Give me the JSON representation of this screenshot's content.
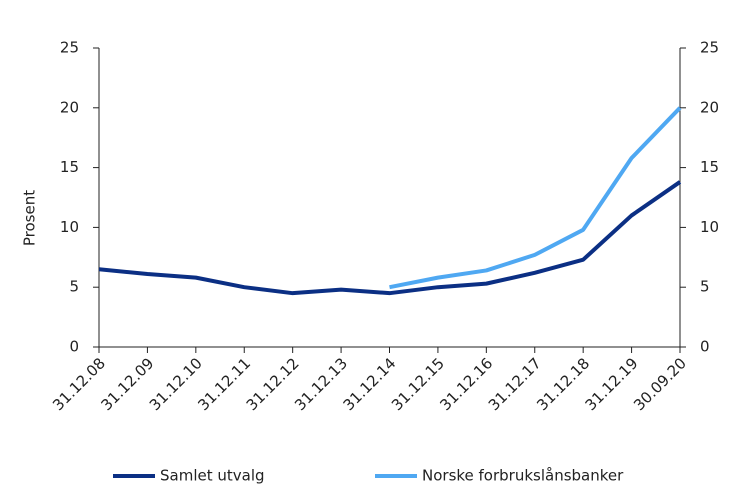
{
  "chart_data": {
    "type": "line",
    "y_label": "Prosent",
    "categories": [
      "31.12.08",
      "31.12.09",
      "31.12.10",
      "31.12.11",
      "31.12.12",
      "31.12.13",
      "31.12.14",
      "31.12.15",
      "31.12.16",
      "31.12.17",
      "31.12.18",
      "31.12.19",
      "30.09.20"
    ],
    "series": [
      {
        "name": "Samlet utvalg",
        "color": "#0b2f84",
        "values": [
          6.5,
          6.1,
          5.8,
          5.0,
          4.5,
          4.8,
          4.5,
          5.0,
          5.3,
          6.2,
          7.3,
          11.0,
          13.8
        ]
      },
      {
        "name": "Norske forbrukslånsbanker",
        "color": "#4fa8f2",
        "values": [
          null,
          null,
          null,
          null,
          null,
          null,
          5.0,
          5.8,
          6.4,
          7.7,
          9.8,
          15.8,
          20.0
        ]
      }
    ],
    "ylim": [
      0,
      25
    ],
    "yticks": [
      0,
      5,
      10,
      15,
      20,
      25
    ],
    "y2lim": [
      0,
      25
    ],
    "y2ticks": [
      0,
      5,
      10,
      15,
      20,
      25
    ],
    "legend": "bottom"
  }
}
